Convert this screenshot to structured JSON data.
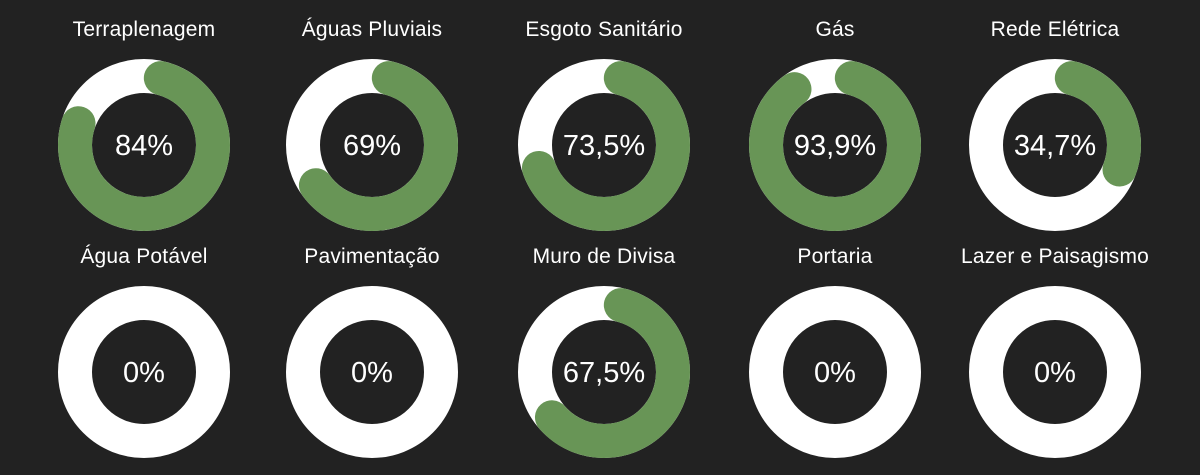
{
  "colors": {
    "background": "#222222",
    "track": "#ffffff",
    "progress": "#689556",
    "center": "#222222",
    "text": "#ffffff"
  },
  "chart_data": {
    "type": "donut-gauge",
    "items": [
      {
        "label": "Terraplenagem",
        "value": 84,
        "display": "84%"
      },
      {
        "label": "Águas Pluviais",
        "value": 69,
        "display": "69%"
      },
      {
        "label": "Esgoto Sanitário",
        "value": 73.5,
        "display": "73,5%"
      },
      {
        "label": "Gás",
        "value": 93.9,
        "display": "93,9%"
      },
      {
        "label": "Rede Elétrica",
        "value": 34.7,
        "display": "34,7%"
      },
      {
        "label": "Água Potável",
        "value": 0,
        "display": "0%"
      },
      {
        "label": "Pavimentação",
        "value": 0,
        "display": "0%"
      },
      {
        "label": "Muro de Divisa",
        "value": 67.5,
        "display": "67,5%"
      },
      {
        "label": "Portaria",
        "value": 0,
        "display": "0%"
      },
      {
        "label": "Lazer e Paisagismo",
        "value": 0,
        "display": "0%"
      }
    ]
  }
}
